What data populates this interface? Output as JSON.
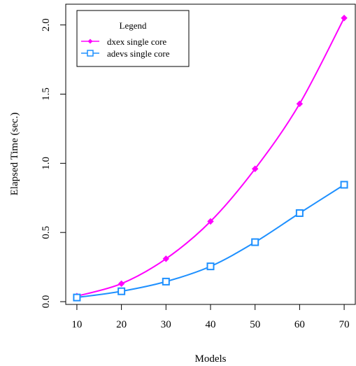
{
  "chart_data": {
    "type": "line",
    "title": "",
    "xlabel": "Models",
    "ylabel": "Elapsed Time (sec.)",
    "x": [
      10,
      20,
      30,
      40,
      50,
      60,
      70
    ],
    "xticks": [
      "10",
      "20",
      "30",
      "40",
      "50",
      "60",
      "70"
    ],
    "yticks": [
      "0.0",
      "0.5",
      "1.0",
      "1.5",
      "2.0"
    ],
    "xlim": [
      7.5,
      72.5
    ],
    "ylim": [
      -0.02,
      2.15
    ],
    "legend": {
      "title": "Legend",
      "position": "top-left"
    },
    "series": [
      {
        "name": "dxex single core",
        "color": "#ff00ff",
        "marker": "diamond",
        "values": [
          0.04,
          0.13,
          0.31,
          0.58,
          0.96,
          1.43,
          2.05
        ]
      },
      {
        "name": "adevs single core",
        "color": "#1e90ff",
        "marker": "square",
        "values": [
          0.03,
          0.075,
          0.145,
          0.255,
          0.43,
          0.64,
          0.845
        ]
      }
    ]
  }
}
